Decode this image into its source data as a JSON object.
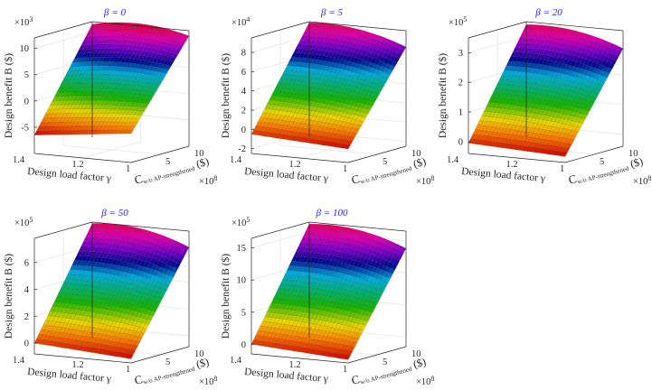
{
  "chart_data": [
    {
      "type": "surface3d",
      "title": "β = 0",
      "zlabel": "Design benefit B ($)",
      "xlabel": "Design load factor γ",
      "ylabel": {
        "main": "C",
        "sub": "w/o AP-strengthened",
        "unit": " ($)"
      },
      "x_ticks": [
        "1.4",
        "1.2",
        "1"
      ],
      "y_ticks": [
        "5",
        "10"
      ],
      "y_exponent": {
        "base": "×10",
        "exp": "8"
      },
      "z_ticks": [
        "-5",
        "0",
        "5",
        "10"
      ],
      "z_tick_values": [
        -5,
        0,
        5,
        10
      ],
      "z_exponent": {
        "base": "×10",
        "exp": "3"
      },
      "xlim": [
        1,
        1.4
      ],
      "ylim": [
        0,
        10
      ],
      "zlim": [
        -10,
        12
      ],
      "surface_corners": {
        "gamma1.4_C0": -6.5,
        "gamma1_C0": -4.5,
        "gamma1_C10": 11,
        "gamma1.4_C10": 11.5
      },
      "curvature": 1.2
    },
    {
      "type": "surface3d",
      "title": "β = 5",
      "zlabel": "Design benefit B ($)",
      "xlabel": "Design load factor γ",
      "ylabel": {
        "main": "C",
        "sub": "w/o AP-strengthened",
        "unit": " ($)"
      },
      "x_ticks": [
        "1.4",
        "1.2",
        "1"
      ],
      "y_ticks": [
        "5",
        "10"
      ],
      "y_exponent": {
        "base": "×10",
        "exp": "8"
      },
      "z_ticks": [
        "-2",
        "0",
        "2",
        "4",
        "6",
        "8"
      ],
      "z_tick_values": [
        -2,
        0,
        2,
        4,
        6,
        8
      ],
      "z_exponent": {
        "base": "×10",
        "exp": "4"
      },
      "xlim": [
        1,
        1.4
      ],
      "ylim": [
        0,
        10
      ],
      "zlim": [
        -2.5,
        9.5
      ],
      "surface_corners": {
        "gamma1.4_C0": -0.5,
        "gamma1_C0": -1.1,
        "gamma1_C10": 7.8,
        "gamma1.4_C10": 9.4
      },
      "curvature": 0.6
    },
    {
      "type": "surface3d",
      "title": "β = 20",
      "zlabel": "Design benefit B ($)",
      "xlabel": "Design load factor γ",
      "ylabel": {
        "main": "C",
        "sub": "w/o AP-strengthened",
        "unit": " ($)"
      },
      "x_ticks": [
        "1.4",
        "1.2",
        "1"
      ],
      "y_ticks": [
        "5",
        "10"
      ],
      "y_exponent": {
        "base": "×10",
        "exp": "8"
      },
      "z_ticks": [
        "0",
        "1",
        "2",
        "3"
      ],
      "z_tick_values": [
        0,
        1,
        2,
        3
      ],
      "z_exponent": {
        "base": "×10",
        "exp": "5"
      },
      "xlim": [
        1,
        1.4
      ],
      "ylim": [
        0,
        10
      ],
      "zlim": [
        -0.4,
        3.5
      ],
      "surface_corners": {
        "gamma1.4_C0": -0.05,
        "gamma1_C0": -0.2,
        "gamma1_C10": 2.9,
        "gamma1.4_C10": 3.4
      },
      "curvature": 0.2
    },
    {
      "type": "surface3d",
      "title": "β = 50",
      "zlabel": "Design benefit B ($)",
      "xlabel": "Design load factor γ",
      "ylabel": {
        "main": "C",
        "sub": "w/o AP-strengthened",
        "unit": " ($)"
      },
      "x_ticks": [
        "1.4",
        "1.2",
        "1"
      ],
      "y_ticks": [
        "5",
        "10"
      ],
      "y_exponent": {
        "base": "×10",
        "exp": "8"
      },
      "z_ticks": [
        "0",
        "2",
        "4",
        "6"
      ],
      "z_tick_values": [
        0,
        2,
        4,
        6
      ],
      "z_exponent": {
        "base": "×10",
        "exp": "5"
      },
      "xlim": [
        1,
        1.4
      ],
      "ylim": [
        0,
        10
      ],
      "zlim": [
        -0.8,
        7.8
      ],
      "surface_corners": {
        "gamma1.4_C0": 0,
        "gamma1_C0": -0.5,
        "gamma1_C10": 6.6,
        "gamma1.4_C10": 7.7
      },
      "curvature": 0.5
    },
    {
      "type": "surface3d",
      "title": "β = 100",
      "zlabel": "Design benefit B ($)",
      "xlabel": "Design load factor γ",
      "ylabel": {
        "main": "C",
        "sub": "w/o AP-strengthened",
        "unit": " ($)"
      },
      "x_ticks": [
        "1.4",
        "1.2",
        "1"
      ],
      "y_ticks": [
        "5",
        "10"
      ],
      "y_exponent": {
        "base": "×10",
        "exp": "8"
      },
      "z_ticks": [
        "0",
        "5",
        "10",
        "15"
      ],
      "z_tick_values": [
        0,
        5,
        10,
        15
      ],
      "z_exponent": {
        "base": "×10",
        "exp": "5"
      },
      "xlim": [
        1,
        1.4
      ],
      "ylim": [
        0,
        10
      ],
      "zlim": [
        -1.5,
        16.5
      ],
      "surface_corners": {
        "gamma1.4_C0": 0,
        "gamma1_C0": -1,
        "gamma1_C10": 13.8,
        "gamma1.4_C10": 16.2
      },
      "curvature": 1.0
    }
  ]
}
